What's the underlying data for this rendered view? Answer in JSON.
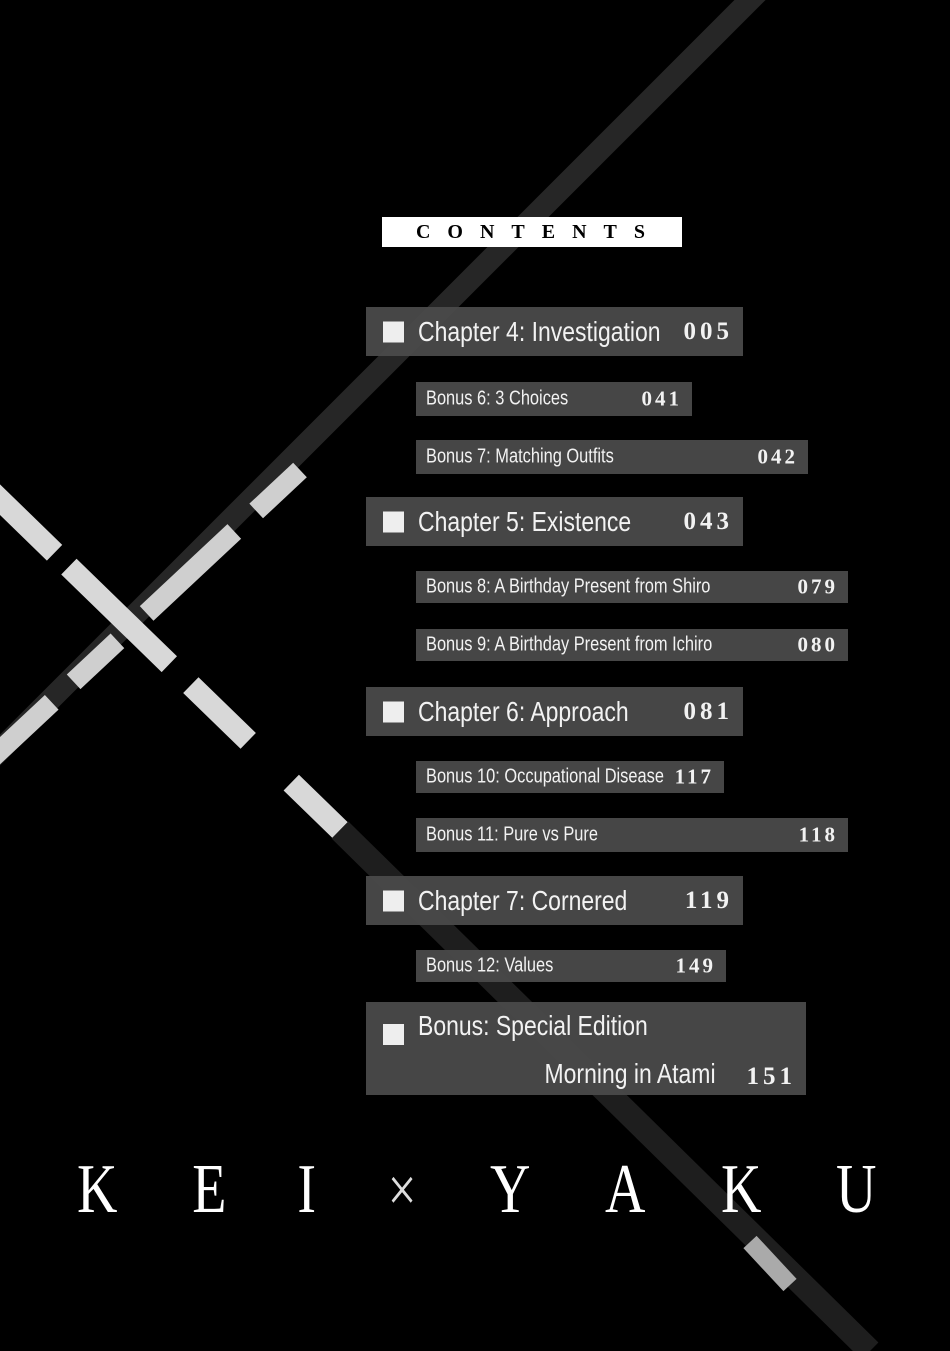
{
  "heading": "CONTENTS",
  "entries": [
    {
      "type": "chapter",
      "title": "Chapter 4: Investigation",
      "page": "005"
    },
    {
      "type": "bonus",
      "title": "Bonus 6: 3 Choices",
      "page": "041"
    },
    {
      "type": "bonus",
      "title": "Bonus 7: Matching Outfits",
      "page": "042"
    },
    {
      "type": "chapter",
      "title": "Chapter 5: Existence",
      "page": "043"
    },
    {
      "type": "bonus",
      "title": "Bonus 8: A Birthday Present from Shiro",
      "page": "079"
    },
    {
      "type": "bonus",
      "title": "Bonus 9: A Birthday Present from Ichiro",
      "page": "080"
    },
    {
      "type": "chapter",
      "title": "Chapter 6: Approach",
      "page": "081"
    },
    {
      "type": "bonus",
      "title": "Bonus 10: Occupational Disease",
      "page": "117"
    },
    {
      "type": "bonus",
      "title": "Bonus 11: Pure vs Pure",
      "page": "118"
    },
    {
      "type": "chapter",
      "title": "Chapter 7: Cornered",
      "page": "119"
    },
    {
      "type": "bonus",
      "title": "Bonus 12: Values",
      "page": "149"
    }
  ],
  "special": {
    "title": "Bonus: Special Edition",
    "subtitle": "Morning in Atami",
    "page": "151"
  },
  "logo": {
    "letters": [
      "K",
      "E",
      "I",
      "×",
      "Y",
      "A",
      "K",
      "U"
    ]
  },
  "colors": {
    "background": "#000000",
    "bar": "#4a4a4a",
    "text": "#f2f2f2"
  }
}
